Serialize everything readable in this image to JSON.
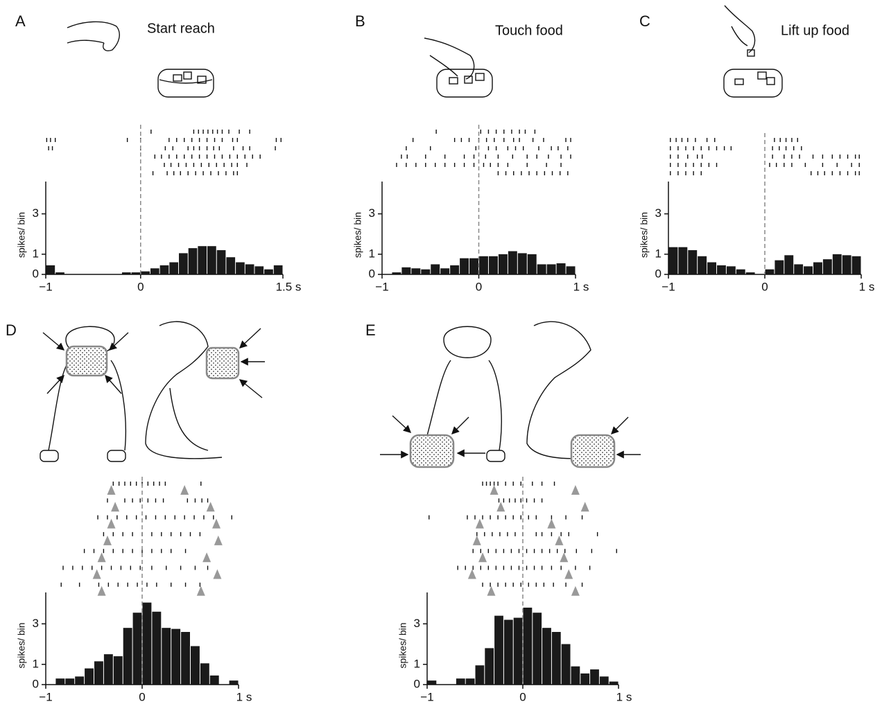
{
  "chart_data": [
    {
      "type": "histogram",
      "panel": "A",
      "annotation": "Start reach",
      "ylabel": "spikes/ bin",
      "bins": [
        -1,
        -0.9,
        -0.8,
        -0.7,
        -0.6,
        -0.5,
        -0.4,
        -0.3,
        -0.2,
        -0.1,
        0,
        0.1,
        0.2,
        0.3,
        0.4,
        0.5,
        0.6,
        0.7,
        0.8,
        0.9,
        1,
        1.1,
        1.2,
        1.3,
        1.4,
        1.5
      ],
      "values": [
        0.45,
        0.1,
        0,
        0,
        0,
        0,
        0,
        0,
        0.1,
        0.1,
        0.15,
        0.3,
        0.45,
        0.6,
        1.05,
        1.3,
        1.4,
        1.4,
        1.2,
        0.85,
        0.6,
        0.5,
        0.4,
        0.25,
        0.45
      ],
      "color": "#1a1a1a",
      "xlim": [
        -1,
        1.5
      ],
      "ylim": [
        0,
        4.6
      ],
      "xticks": [
        {
          "value": -1,
          "label": "−1"
        },
        0,
        {
          "value": 1.5,
          "label": "1.5 s"
        }
      ],
      "yticks": [
        0,
        1,
        3
      ],
      "raster": [
        [
          0.11,
          0.56,
          0.61,
          0.66,
          0.71,
          0.76,
          0.81,
          0.86,
          0.93,
          1.04,
          1.15
        ],
        [
          -0.99,
          -0.95,
          -0.9,
          -0.14,
          0,
          0.3,
          0.38,
          0.46,
          0.54,
          0.62,
          0.7,
          0.78,
          0.86,
          0.97,
          1.02,
          1.43,
          1.48
        ],
        [
          -0.97,
          -0.93,
          0,
          0.26,
          0.34,
          0.5,
          0.56,
          0.62,
          0.7,
          0.77,
          0.83,
          0.98,
          1.08,
          1.15,
          1.42
        ],
        [
          0.15,
          0.22,
          0.3,
          0.38,
          0.46,
          0.54,
          0.62,
          0.7,
          0.78,
          0.86,
          0.94,
          1.02,
          1.1,
          1.18,
          1.26
        ],
        [
          0.25,
          0.32,
          0.4,
          0.48,
          0.56,
          0.64,
          0.72,
          0.8,
          0.88,
          0.96,
          1.02,
          1.12
        ],
        [
          0.13,
          0.28,
          0.35,
          0.42,
          0.5,
          0.58,
          0.66,
          0.74,
          0.82,
          0.9,
          0.98,
          1.02
        ]
      ]
    },
    {
      "type": "histogram",
      "panel": "B",
      "annotation": "Touch food",
      "ylabel": "spikes/ bin",
      "bins": [
        -1,
        -0.9,
        -0.8,
        -0.7,
        -0.6,
        -0.5,
        -0.4,
        -0.3,
        -0.2,
        -0.1,
        0,
        0.1,
        0.2,
        0.3,
        0.4,
        0.5,
        0.6,
        0.7,
        0.8,
        0.9,
        1
      ],
      "values": [
        0,
        0.1,
        0.35,
        0.3,
        0.25,
        0.5,
        0.3,
        0.45,
        0.8,
        0.8,
        0.9,
        0.9,
        1.0,
        1.15,
        1.05,
        1.0,
        0.5,
        0.5,
        0.55,
        0.4
      ],
      "color": "#1a1a1a",
      "xlim": [
        -1,
        1
      ],
      "ylim": [
        0,
        4.6
      ],
      "xticks": [
        {
          "value": -1,
          "label": "−1"
        },
        0,
        {
          "value": 1,
          "label": "1 s"
        }
      ],
      "yticks": [
        0,
        1,
        3
      ],
      "raster": [
        [
          -0.44,
          0.02,
          0.1,
          0.18,
          0.26,
          0.34,
          0.42,
          0.48,
          0.58
        ],
        [
          -0.68,
          -0.25,
          -0.18,
          -0.1,
          0,
          0.08,
          0.16,
          0.26,
          0.36,
          0.42,
          0.56,
          0.67,
          0.9,
          0.95
        ],
        [
          -0.75,
          -0.5,
          -0.03,
          0.1,
          0.18,
          0.3,
          0.38,
          0.46,
          0.62,
          0.75,
          0.82,
          0.92
        ],
        [
          -0.8,
          -0.74,
          -0.55,
          -0.35,
          -0.15,
          -0.05,
          0.07,
          0.2,
          0.35,
          0.5,
          0.6,
          0.72,
          0.85,
          0.95
        ],
        [
          -0.85,
          -0.75,
          -0.65,
          -0.55,
          -0.45,
          -0.35,
          -0.25,
          -0.15,
          -0.05,
          0.05,
          0.12,
          0.2,
          0.3,
          0.5,
          0.7,
          0.85
        ],
        [
          0.2,
          0.28,
          0.36,
          0.44,
          0.52,
          0.6,
          0.68,
          0.76,
          0.84,
          0.92
        ]
      ]
    },
    {
      "type": "histogram",
      "panel": "C",
      "annotation": "Lift up food",
      "ylabel": "spikes/ bin",
      "bins": [
        -1,
        -0.9,
        -0.8,
        -0.7,
        -0.6,
        -0.5,
        -0.4,
        -0.3,
        -0.2,
        -0.1,
        0,
        0.1,
        0.2,
        0.3,
        0.4,
        0.5,
        0.6,
        0.7,
        0.8,
        0.9,
        1
      ],
      "values": [
        1.35,
        1.35,
        1.2,
        0.9,
        0.6,
        0.45,
        0.4,
        0.25,
        0.1,
        0,
        0.25,
        0.7,
        0.95,
        0.5,
        0.4,
        0.6,
        0.75,
        1.0,
        0.95,
        0.9
      ],
      "color": "#1a1a1a",
      "xlim": [
        -1,
        1
      ],
      "ylim": [
        0,
        4.6
      ],
      "xticks": [
        {
          "value": -1,
          "label": "−1"
        },
        0,
        {
          "value": 1,
          "label": "1 s"
        }
      ],
      "yticks": [
        0,
        1,
        3
      ],
      "raster": [
        [
          -0.98,
          -0.92,
          -0.86,
          -0.8,
          -0.72,
          -0.6,
          -0.52,
          0.1,
          0.16,
          0.22,
          0.28,
          0.34
        ],
        [
          -0.98,
          -0.9,
          -0.82,
          -0.74,
          -0.66,
          -0.58,
          -0.5,
          -0.42,
          -0.35,
          0.08,
          0.15,
          0.22,
          0.3,
          0.38
        ],
        [
          -0.98,
          -0.9,
          -0.8,
          -0.7,
          -0.65,
          0.08,
          0.2,
          0.28,
          0.36,
          0.5,
          0.6,
          0.7,
          0.78,
          0.86,
          0.94,
          0.98
        ],
        [
          -0.98,
          -0.9,
          -0.82,
          -0.74,
          -0.66,
          -0.58,
          -0.5,
          0.05,
          0.12,
          0.2,
          0.28,
          0.42,
          0.6,
          0.75,
          0.9,
          0.98
        ],
        [
          -0.98,
          -0.9,
          -0.82,
          -0.74,
          -0.66,
          0.48,
          0.55,
          0.62,
          0.7,
          0.78,
          0.86,
          0.94,
          0.98
        ]
      ]
    },
    {
      "type": "histogram",
      "panel": "D",
      "ylabel": "spikes/ bin",
      "bins": [
        -0.9,
        -0.8,
        -0.7,
        -0.6,
        -0.5,
        -0.4,
        -0.3,
        -0.2,
        -0.1,
        0,
        0.1,
        0.2,
        0.3,
        0.4,
        0.5,
        0.6,
        0.7,
        0.8,
        0.9,
        1
      ],
      "values": [
        0.3,
        0.3,
        0.4,
        0.8,
        1.15,
        1.5,
        1.4,
        2.8,
        3.55,
        4.05,
        3.6,
        2.8,
        2.75,
        2.6,
        1.9,
        1.05,
        0.45,
        0,
        0.2
      ],
      "color": "#1a1a1a",
      "xlim": [
        -1,
        1
      ],
      "ylim": [
        0,
        4.55
      ],
      "xticks": [
        {
          "value": -1,
          "label": "−1"
        },
        0,
        {
          "value": 1,
          "label": "1 s"
        }
      ],
      "yticks": [
        0,
        1,
        3
      ],
      "raster": [
        [
          -0.3,
          -0.24,
          -0.18,
          -0.12,
          -0.06,
          0,
          0.06,
          0.12,
          0.18,
          0.24,
          0.61
        ],
        [
          -0.36,
          -0.18,
          -0.1,
          -0.02,
          0.06,
          0.14,
          0.22,
          0.47,
          0.55,
          0.62,
          0.68
        ],
        [
          -0.46,
          -0.36,
          -0.26,
          -0.16,
          -0.06,
          0.04,
          0.14,
          0.24,
          0.34,
          0.44,
          0.54,
          0.64,
          0.74,
          0.93
        ],
        [
          -0.4,
          -0.3,
          -0.2,
          -0.1,
          0,
          0.1,
          0.2,
          0.3,
          0.4,
          0.5,
          0.6
        ],
        [
          -0.6,
          -0.5,
          -0.4,
          -0.3,
          -0.2,
          -0.1,
          0,
          0.1,
          0.2,
          0.3,
          0.45
        ],
        [
          -0.82,
          -0.72,
          -0.62,
          -0.52,
          -0.42,
          -0.32,
          -0.22,
          -0.12,
          -0.02,
          0.1,
          0.25,
          0.4,
          0.55,
          0.68
        ],
        [
          -0.84,
          -0.65,
          -0.45,
          -0.35,
          -0.25,
          -0.15,
          -0.05,
          0.05,
          0.15,
          0.3,
          0.45,
          0.6
        ]
      ],
      "events": [
        [
          -0.32,
          0.44
        ],
        [
          -0.28,
          0.71
        ],
        [
          -0.32,
          0.77
        ],
        [
          -0.36,
          0.79
        ],
        [
          -0.42,
          0.67
        ],
        [
          -0.47,
          0.78
        ],
        [
          -0.42,
          0.61
        ]
      ]
    },
    {
      "type": "histogram",
      "panel": "E",
      "ylabel": "spikes/ bin",
      "bins": [
        -1,
        -0.9,
        -0.8,
        -0.7,
        -0.6,
        -0.5,
        -0.4,
        -0.3,
        -0.2,
        -0.1,
        0,
        0.1,
        0.2,
        0.3,
        0.4,
        0.5,
        0.6,
        0.7,
        0.8,
        0.9,
        1
      ],
      "values": [
        0.2,
        0,
        0,
        0.3,
        0.3,
        0.95,
        1.8,
        3.4,
        3.2,
        3.3,
        3.8,
        3.55,
        2.8,
        2.6,
        2.0,
        0.9,
        0.55,
        0.75,
        0.4,
        0.15
      ],
      "color": "#1a1a1a",
      "xlim": [
        -1,
        1
      ],
      "ylim": [
        0,
        4.55
      ],
      "xticks": [
        {
          "value": -1,
          "label": "−1"
        },
        0,
        {
          "value": 1,
          "label": "1 s"
        }
      ],
      "yticks": [
        0,
        1,
        3
      ],
      "raster": [
        [
          -0.42,
          -0.38,
          -0.34,
          -0.3,
          -0.26,
          -0.18,
          -0.1,
          -0.02,
          0.1,
          0.2,
          0.33
        ],
        [
          -0.25,
          -0.2,
          -0.14,
          -0.08,
          -0.02,
          0.04,
          0.12,
          0.2
        ],
        [
          -0.98,
          -0.58,
          -0.5,
          -0.42,
          -0.34,
          -0.26,
          -0.18,
          -0.1,
          -0.02,
          0.06,
          0.14,
          0.3,
          0.45,
          0.62
        ],
        [
          -0.48,
          -0.4,
          -0.32,
          -0.24,
          -0.16,
          -0.08,
          0,
          0.14,
          0.2,
          0.3,
          0.4,
          0.48,
          0.78
        ],
        [
          -0.52,
          -0.44,
          -0.36,
          -0.28,
          -0.2,
          -0.12,
          -0.04,
          0.04,
          0.12,
          0.2,
          0.28,
          0.36,
          0.44,
          0.56,
          0.72,
          0.98
        ],
        [
          -0.68,
          -0.6,
          -0.52,
          -0.44,
          -0.36,
          -0.28,
          -0.2,
          -0.12,
          -0.04,
          0.04,
          0.12,
          0.2,
          0.3,
          0.4,
          0.55,
          0.7
        ],
        [
          -0.42,
          -0.34,
          -0.26,
          -0.18,
          -0.1,
          -0.02,
          0.06,
          0.14,
          0.22,
          0.32,
          0.45,
          0.62
        ]
      ],
      "events": [
        [
          -0.3,
          0.55
        ],
        [
          -0.23,
          0.65
        ],
        [
          -0.45,
          0.3
        ],
        [
          -0.48,
          0.38
        ],
        [
          -0.42,
          0.43
        ],
        [
          -0.53,
          0.48
        ],
        [
          -0.33,
          0.55
        ]
      ]
    }
  ]
}
